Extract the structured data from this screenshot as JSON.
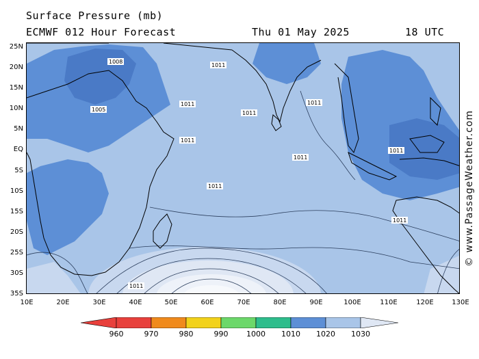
{
  "header": {
    "title": "Surface Pressure (mb)",
    "model": "ECMWF 012 Hour Forecast",
    "valid_date": "Thu 01 May 2025",
    "valid_time": "18 UTC"
  },
  "watermark": "© www.PassageWeather.com",
  "axes": {
    "lat_labels": [
      "25N",
      "20N",
      "15N",
      "10N",
      "5N",
      "EQ",
      "5S",
      "10S",
      "15S",
      "20S",
      "25S",
      "30S",
      "35S"
    ],
    "lon_labels": [
      "10E",
      "20E",
      "30E",
      "40E",
      "50E",
      "60E",
      "70E",
      "80E",
      "90E",
      "100E",
      "110E",
      "120E",
      "130E"
    ]
  },
  "colorbar": {
    "labels": [
      "960",
      "970",
      "980",
      "990",
      "1000",
      "1010",
      "1020",
      "1030"
    ],
    "colors": [
      "#e8403c",
      "#f08a1c",
      "#f2d21a",
      "#6cd86a",
      "#2ebd8c",
      "#5d8fd6",
      "#a9c5e8",
      "#dfe7f4"
    ]
  },
  "map": {
    "isobar_labels": [
      "1008",
      "1011",
      "1005",
      "1011",
      "1011",
      "1011",
      "1011",
      "1011",
      "1011",
      "1011",
      "1011",
      "1011"
    ]
  }
}
